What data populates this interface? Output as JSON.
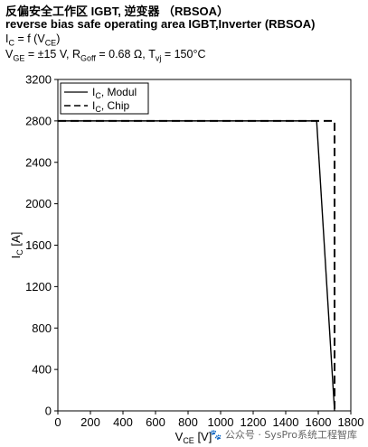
{
  "header": {
    "title_line1": "反偏安全工作区 IGBT, 逆变器 （RBSOA）",
    "title_line2": "reverse bias safe operating area IGBT,Inverter (RBSOA)",
    "condition_line1_main": "I",
    "condition_line1_sub": "C",
    "condition_line1_rest": " = f (V",
    "condition_line1_sub2": "CE",
    "condition_line1_end": ")",
    "condition_line2": "V_GE = ±15 V, R_Goff = 0.68 Ω, T_vj = 150°C"
  },
  "chart_data": {
    "type": "line",
    "xlabel": "VCE [V]",
    "ylabel": "IC [A]",
    "xlim": [
      0,
      1800
    ],
    "ylim": [
      0,
      3200
    ],
    "xticks": [
      0,
      200,
      400,
      600,
      800,
      1000,
      1200,
      1400,
      1600,
      1800
    ],
    "yticks": [
      0,
      400,
      800,
      1200,
      1600,
      2000,
      2400,
      2800,
      3200
    ],
    "grid": false,
    "legend_position": "top-left",
    "series": [
      {
        "name": "IC, Modul",
        "style": "solid",
        "x": [
          0,
          1590,
          1700
        ],
        "y": [
          2800,
          2800,
          0
        ]
      },
      {
        "name": "IC, Chip",
        "style": "dashed",
        "x": [
          0,
          1700,
          1700
        ],
        "y": [
          2800,
          2800,
          0
        ]
      }
    ]
  },
  "watermark": "🐾 公众号 · SysPro系统工程智库"
}
